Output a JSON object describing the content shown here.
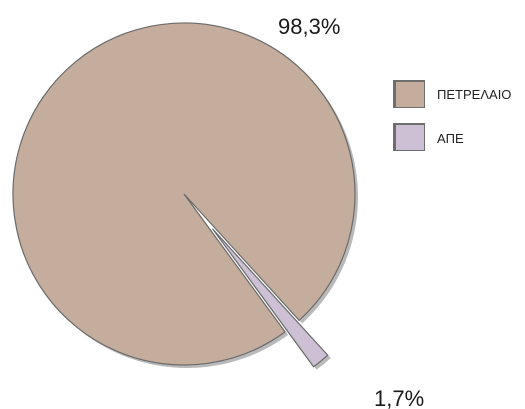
{
  "chart_data": {
    "type": "pie",
    "title": "",
    "slices": [
      {
        "label": "ΠΕΤΡΕΛΑΙΟ",
        "value": 98.3,
        "value_label": "98,3%",
        "color": "#c4ad9c",
        "exploded": false
      },
      {
        "label": "ΑΠΕ",
        "value": 1.7,
        "value_label": "1,7%",
        "color": "#cdbfd4",
        "exploded": true
      }
    ],
    "legend": {
      "position": "right",
      "items": [
        {
          "label": "ΠΕΤΡΕΛΑΙΟ",
          "color": "#c4ad9c"
        },
        {
          "label": "ΑΠΕ",
          "color": "#cdbfd4"
        }
      ]
    },
    "style": {
      "edge_color": "#6b6b6b",
      "shadow_color": "#b9b9b9"
    }
  }
}
